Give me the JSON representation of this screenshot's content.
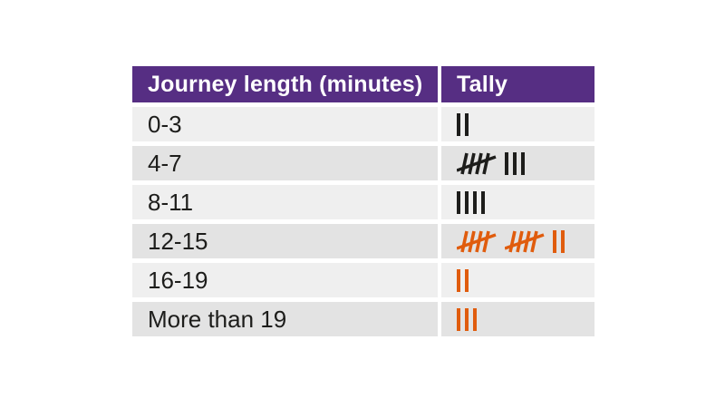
{
  "colors": {
    "page_bg": "#ffffff",
    "header_bg": "#562e83",
    "header_text": "#ffffff",
    "row_light": "#efefef",
    "row_dark": "#e3e3e3",
    "label_text": "#1d1d1b",
    "tally_black": "#1d1d1b",
    "tally_orange": "#e05c0d"
  },
  "table": {
    "headers": [
      "Journey length (minutes)",
      "Tally"
    ],
    "rows": [
      {
        "label": "0-3",
        "tally_count": 2,
        "tally_groups": [
          2
        ],
        "color_name": "black"
      },
      {
        "label": "4-7",
        "tally_count": 8,
        "tally_groups": [
          5,
          3
        ],
        "color_name": "black"
      },
      {
        "label": "8-11",
        "tally_count": 4,
        "tally_groups": [
          4
        ],
        "color_name": "black"
      },
      {
        "label": "12-15",
        "tally_count": 12,
        "tally_groups": [
          5,
          5,
          2
        ],
        "color_name": "orange"
      },
      {
        "label": "16-19",
        "tally_count": 2,
        "tally_groups": [
          2
        ],
        "color_name": "orange"
      },
      {
        "label": "More than 19",
        "tally_count": 3,
        "tally_groups": [
          3
        ],
        "color_name": "orange"
      }
    ]
  },
  "chart_data": {
    "type": "table",
    "title": "",
    "columns": [
      "Journey length (minutes)",
      "Tally"
    ],
    "categories": [
      "0-3",
      "4-7",
      "8-11",
      "12-15",
      "16-19",
      "More than 19"
    ],
    "values": [
      2,
      8,
      4,
      12,
      2,
      3
    ],
    "tally_groups": [
      [
        2
      ],
      [
        5,
        3
      ],
      [
        4
      ],
      [
        5,
        5,
        2
      ],
      [
        2
      ],
      [
        3
      ]
    ],
    "tally_mark_colors": [
      "#1d1d1b",
      "#1d1d1b",
      "#1d1d1b",
      "#e05c0d",
      "#e05c0d",
      "#e05c0d"
    ],
    "legend_position": "none",
    "grid": false
  }
}
